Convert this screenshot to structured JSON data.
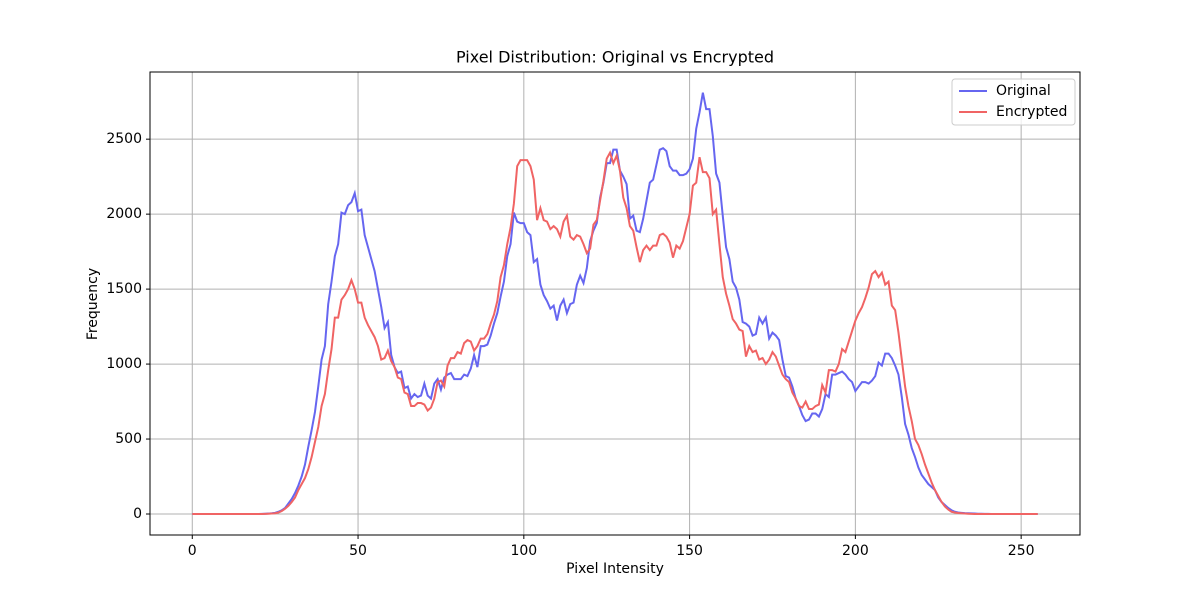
{
  "chart_data": {
    "type": "line",
    "title": "Pixel Distribution: Original vs Encrypted",
    "x_label": "Pixel Intensity",
    "y_label": "Frequency",
    "x": [
      0,
      1,
      2,
      3,
      4,
      5,
      6,
      7,
      8,
      9,
      10,
      11,
      12,
      13,
      14,
      15,
      16,
      17,
      18,
      19,
      20,
      21,
      22,
      23,
      24,
      25,
      26,
      27,
      28,
      29,
      30,
      31,
      32,
      33,
      34,
      35,
      36,
      37,
      38,
      39,
      40,
      41,
      42,
      43,
      44,
      45,
      46,
      47,
      48,
      49,
      50,
      51,
      52,
      53,
      54,
      55,
      56,
      57,
      58,
      59,
      60,
      61,
      62,
      63,
      64,
      65,
      66,
      67,
      68,
      69,
      70,
      71,
      72,
      73,
      74,
      75,
      76,
      77,
      78,
      79,
      80,
      81,
      82,
      83,
      84,
      85,
      86,
      87,
      88,
      89,
      90,
      91,
      92,
      93,
      94,
      95,
      96,
      97,
      98,
      99,
      100,
      101,
      102,
      103,
      104,
      105,
      106,
      107,
      108,
      109,
      110,
      111,
      112,
      113,
      114,
      115,
      116,
      117,
      118,
      119,
      120,
      121,
      122,
      123,
      124,
      125,
      126,
      127,
      128,
      129,
      130,
      131,
      132,
      133,
      134,
      135,
      136,
      137,
      138,
      139,
      140,
      141,
      142,
      143,
      144,
      145,
      146,
      147,
      148,
      149,
      150,
      151,
      152,
      153,
      154,
      155,
      156,
      157,
      158,
      159,
      160,
      161,
      162,
      163,
      164,
      165,
      166,
      167,
      168,
      169,
      170,
      171,
      172,
      173,
      174,
      175,
      176,
      177,
      178,
      179,
      180,
      181,
      182,
      183,
      184,
      185,
      186,
      187,
      188,
      189,
      190,
      191,
      192,
      193,
      194,
      195,
      196,
      197,
      198,
      199,
      200,
      201,
      202,
      203,
      204,
      205,
      206,
      207,
      208,
      209,
      210,
      211,
      212,
      213,
      214,
      215,
      216,
      217,
      218,
      219,
      220,
      221,
      222,
      223,
      224,
      225,
      226,
      227,
      228,
      229,
      230,
      231,
      232,
      233,
      234,
      235,
      236,
      237,
      238,
      239,
      240,
      241,
      242,
      243,
      244,
      245,
      246,
      247,
      248,
      249,
      250,
      251,
      252,
      253,
      254,
      255
    ],
    "series": [
      {
        "name": "Original",
        "color": "#6666f0",
        "values": [
          0,
          0,
          0,
          0,
          0,
          0,
          0,
          0,
          0,
          0,
          0,
          0,
          0,
          0,
          0,
          0,
          0,
          0,
          0,
          0,
          0,
          1,
          2,
          3,
          5,
          8,
          15,
          25,
          40,
          70,
          100,
          140,
          190,
          250,
          330,
          450,
          560,
          680,
          850,
          1030,
          1120,
          1400,
          1550,
          1720,
          1800,
          2010,
          2000,
          2060,
          2080,
          2140,
          2020,
          2030,
          1860,
          1780,
          1700,
          1620,
          1500,
          1380,
          1240,
          1280,
          1060,
          980,
          940,
          950,
          840,
          850,
          770,
          800,
          780,
          790,
          870,
          790,
          770,
          870,
          900,
          830,
          910,
          930,
          940,
          900,
          900,
          900,
          930,
          920,
          970,
          1060,
          980,
          1120,
          1120,
          1130,
          1190,
          1270,
          1340,
          1450,
          1550,
          1720,
          1800,
          2010,
          1950,
          1940,
          1940,
          1880,
          1860,
          1680,
          1700,
          1530,
          1460,
          1420,
          1370,
          1390,
          1290,
          1390,
          1430,
          1340,
          1400,
          1410,
          1530,
          1590,
          1540,
          1640,
          1820,
          1890,
          1940,
          2110,
          2210,
          2340,
          2340,
          2430,
          2430,
          2290,
          2250,
          2200,
          1970,
          1990,
          1890,
          1880,
          1970,
          2090,
          2210,
          2230,
          2330,
          2430,
          2440,
          2420,
          2320,
          2290,
          2290,
          2260,
          2260,
          2270,
          2300,
          2370,
          2570,
          2680,
          2810,
          2700,
          2700,
          2520,
          2270,
          2210,
          1990,
          1780,
          1700,
          1550,
          1510,
          1430,
          1280,
          1270,
          1250,
          1190,
          1200,
          1310,
          1270,
          1310,
          1170,
          1210,
          1190,
          1160,
          1030,
          920,
          910,
          850,
          770,
          720,
          660,
          620,
          630,
          670,
          670,
          650,
          700,
          800,
          780,
          930,
          930,
          940,
          950,
          930,
          900,
          880,
          820,
          850,
          880,
          880,
          870,
          890,
          920,
          1010,
          990,
          1070,
          1070,
          1040,
          990,
          930,
          780,
          600,
          530,
          440,
          380,
          310,
          260,
          230,
          200,
          180,
          160,
          110,
          80,
          60,
          40,
          25,
          15,
          10,
          8,
          6,
          5,
          4,
          3,
          2,
          2,
          1,
          1,
          0,
          0,
          0,
          0,
          0,
          0,
          0,
          0,
          0,
          0,
          0,
          0,
          0,
          0,
          0
        ]
      },
      {
        "name": "Encrypted",
        "color": "#f06464",
        "values": [
          0,
          0,
          0,
          0,
          0,
          0,
          0,
          0,
          0,
          0,
          0,
          0,
          0,
          0,
          0,
          0,
          0,
          0,
          0,
          0,
          0,
          0,
          1,
          2,
          3,
          5,
          10,
          20,
          35,
          55,
          80,
          110,
          160,
          200,
          240,
          300,
          380,
          480,
          580,
          720,
          800,
          960,
          1100,
          1310,
          1310,
          1430,
          1460,
          1500,
          1560,
          1500,
          1410,
          1410,
          1310,
          1260,
          1220,
          1180,
          1120,
          1030,
          1040,
          1090,
          1020,
          980,
          910,
          900,
          810,
          800,
          720,
          720,
          740,
          740,
          730,
          690,
          710,
          770,
          880,
          890,
          850,
          990,
          1040,
          1040,
          1080,
          1070,
          1140,
          1160,
          1150,
          1090,
          1120,
          1170,
          1170,
          1200,
          1270,
          1330,
          1420,
          1580,
          1660,
          1800,
          1910,
          2070,
          2320,
          2360,
          2360,
          2360,
          2320,
          2230,
          1960,
          2040,
          1960,
          1950,
          1900,
          1920,
          1900,
          1850,
          1950,
          1990,
          1850,
          1830,
          1860,
          1850,
          1800,
          1740,
          1770,
          1930,
          1960,
          2090,
          2220,
          2370,
          2410,
          2340,
          2390,
          2290,
          2110,
          2040,
          1920,
          1890,
          1780,
          1680,
          1760,
          1790,
          1760,
          1790,
          1790,
          1860,
          1870,
          1850,
          1810,
          1710,
          1790,
          1770,
          1820,
          1910,
          2000,
          2190,
          2210,
          2380,
          2280,
          2280,
          2240,
          2000,
          2030,
          1800,
          1580,
          1470,
          1390,
          1300,
          1270,
          1230,
          1220,
          1050,
          1120,
          1080,
          1090,
          1030,
          1040,
          1000,
          1030,
          1080,
          1050,
          990,
          930,
          900,
          880,
          810,
          770,
          720,
          710,
          750,
          700,
          700,
          720,
          730,
          860,
          810,
          960,
          960,
          950,
          1000,
          1100,
          1080,
          1150,
          1220,
          1290,
          1340,
          1380,
          1440,
          1510,
          1600,
          1620,
          1580,
          1610,
          1530,
          1550,
          1390,
          1360,
          1210,
          1030,
          850,
          720,
          620,
          500,
          460,
          400,
          330,
          270,
          210,
          160,
          120,
          80,
          50,
          30,
          15,
          10,
          7,
          5,
          3,
          2,
          1,
          0,
          0,
          0,
          0,
          0,
          0,
          0,
          0,
          0,
          0,
          0,
          0,
          0,
          0,
          0,
          0,
          0,
          0,
          0,
          0
        ]
      }
    ],
    "xlim": [
      -12.75,
      267.75
    ],
    "ylim": [
      -140,
      2948
    ],
    "xticks": [
      0,
      50,
      100,
      150,
      200,
      250
    ],
    "yticks": [
      0,
      500,
      1000,
      1500,
      2000,
      2500
    ],
    "grid": true,
    "legend": "upper right"
  }
}
